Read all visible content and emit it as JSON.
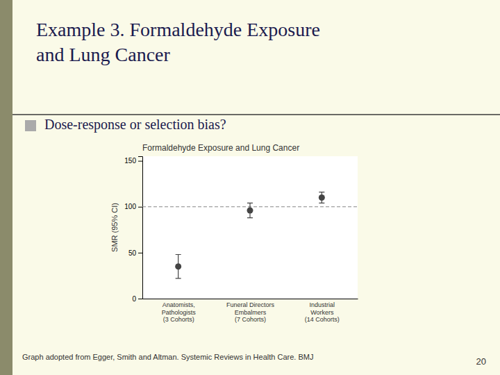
{
  "title": "Example 3. Formaldehyde Exposure\nand Lung Cancer",
  "subtitle": "Dose-response or selection bias?",
  "annotations": [
    "Graph adopted from Egger, Smith and Altman. Systemic Reviews in Health Care. BMJ",
    "20"
  ],
  "chart_data": {
    "type": "errorbar",
    "title": "Formaldehyde Exposure and Lung Cancer",
    "y_label": "SMR (95% CI)",
    "categories": [
      "Anatomists,\nPathologists\n(3 Cohorts)",
      "Funeral Directors\nEmbalmers\n(7 Cohorts)",
      "Industrial\nWorkers\n(14 Cohorts)"
    ],
    "values": [
      35,
      96,
      110
    ],
    "lower": [
      22,
      88,
      104
    ],
    "upper": [
      48,
      104,
      116
    ],
    "reference_line": 100,
    "ylim": [
      0,
      155
    ],
    "yticks": [
      0,
      50,
      100,
      150
    ],
    "color": "#444444",
    "grid": false
  }
}
